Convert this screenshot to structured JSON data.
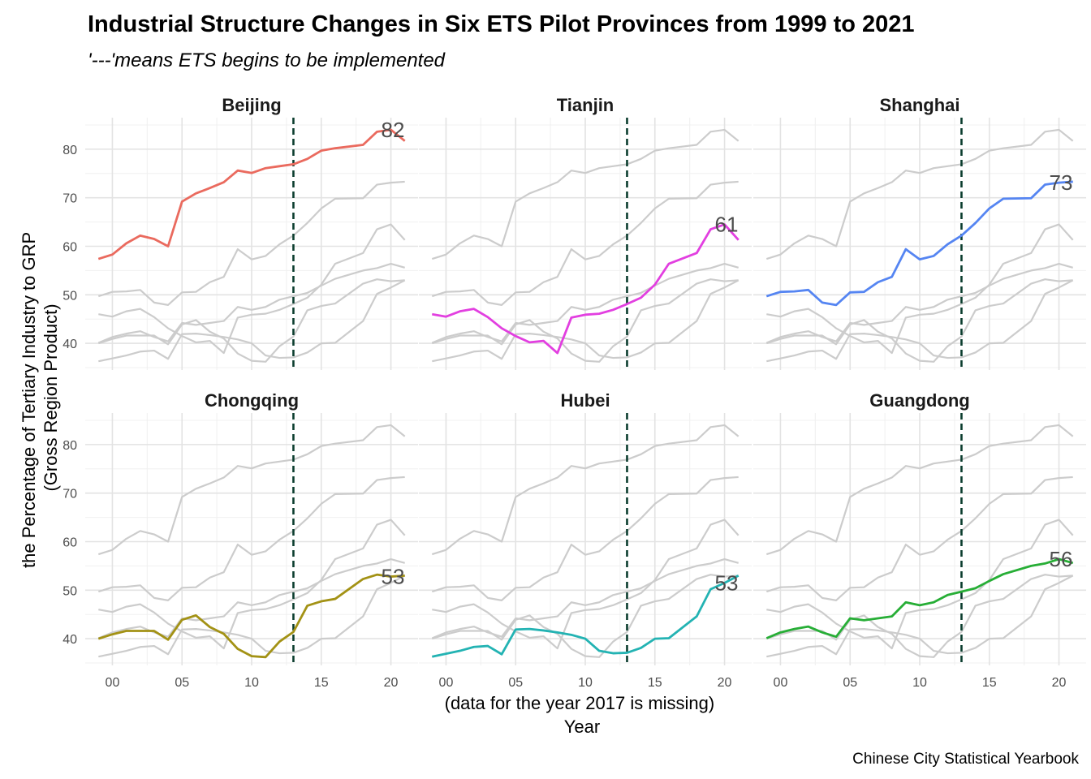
{
  "title": "Industrial Structure Changes in Six ETS Pilot Provinces from 1999 to 2021",
  "subtitle": "'---'means ETS begins to be implemented",
  "caption": "Chinese City Statistical Yearbook",
  "chart_data": {
    "type": "line",
    "layout": "small-multiples 2x3",
    "xlabel": "(data for the year 2017 is missing)\nYear",
    "ylabel": "the Percentage of Tertiary Industry to GRP\n(Gross Region Product)",
    "x_tick_values": [
      0,
      5,
      10,
      15,
      20
    ],
    "x_tick_labels": [
      "00",
      "05",
      "10",
      "15",
      "20"
    ],
    "y_ticks": [
      40,
      50,
      60,
      70,
      80
    ],
    "xlim": [
      -1.95,
      21.95
    ],
    "ylim": [
      34.5,
      86.5
    ],
    "ets_start_x": 13,
    "ets_line_color": "#0b3d2e",
    "background_series_color": "#cccccc",
    "grid": true,
    "x": [
      -1,
      0,
      1,
      2,
      3,
      4,
      5,
      6,
      7,
      8,
      9,
      10,
      11,
      12,
      13,
      14,
      15,
      16,
      18,
      19,
      20,
      21
    ],
    "series": [
      {
        "name": "Beijing",
        "color": "#ea6a5e",
        "end_label": "82",
        "values": [
          57.4,
          58.3,
          60.6,
          62.2,
          61.5,
          60.0,
          69.2,
          70.9,
          72.0,
          73.2,
          75.6,
          75.1,
          76.1,
          76.5,
          76.9,
          78.0,
          79.7,
          80.2,
          80.9,
          83.6,
          84.0,
          81.7
        ]
      },
      {
        "name": "Tianjin",
        "color": "#e23fe0",
        "end_label": "61",
        "values": [
          46.0,
          45.5,
          46.6,
          47.1,
          45.4,
          43.1,
          41.5,
          40.2,
          40.5,
          38.0,
          45.3,
          45.9,
          46.1,
          46.9,
          48.1,
          49.4,
          52.1,
          56.4,
          58.6,
          63.5,
          64.5,
          61.3
        ]
      },
      {
        "name": "Shanghai",
        "color": "#5585f2",
        "end_label": "73",
        "values": [
          49.7,
          50.6,
          50.7,
          51.0,
          48.4,
          47.9,
          50.5,
          50.6,
          52.6,
          53.7,
          59.4,
          57.3,
          58.0,
          60.4,
          62.2,
          64.8,
          67.8,
          69.8,
          69.9,
          72.7,
          73.1,
          73.3
        ]
      },
      {
        "name": "Chongqing",
        "color": "#a39215",
        "end_label": "53",
        "values": [
          40.0,
          40.9,
          41.6,
          41.6,
          41.6,
          39.8,
          43.9,
          44.8,
          42.4,
          41.0,
          37.9,
          36.4,
          36.2,
          39.4,
          41.4,
          46.8,
          47.7,
          48.2,
          52.3,
          53.2,
          52.8,
          53.0
        ]
      },
      {
        "name": "Hubei",
        "color": "#23b3b3",
        "end_label": "53",
        "values": [
          36.3,
          36.9,
          37.5,
          38.3,
          38.5,
          36.8,
          41.9,
          42.0,
          41.7,
          41.3,
          40.8,
          40.0,
          37.5,
          37.0,
          37.1,
          38.1,
          40.0,
          40.1,
          44.6,
          50.2,
          51.5,
          53.0
        ]
      },
      {
        "name": "Guangdong",
        "color": "#27ae36",
        "end_label": "56",
        "values": [
          40.1,
          41.3,
          42.0,
          42.5,
          41.3,
          40.4,
          44.2,
          43.8,
          44.2,
          44.6,
          47.5,
          46.9,
          47.5,
          49.0,
          49.7,
          50.4,
          51.9,
          53.3,
          55.0,
          55.5,
          56.4,
          55.6
        ]
      }
    ]
  }
}
